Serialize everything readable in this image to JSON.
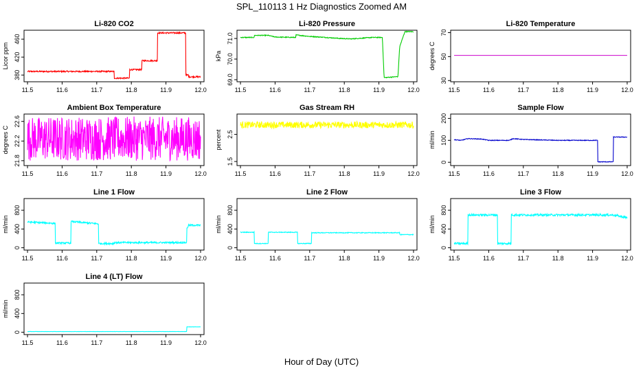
{
  "figure": {
    "title": "SPL_110113  1 Hz Diagnostics Zoomed AM",
    "xlabel": "Hour of Day (UTC)"
  },
  "chart_data": [
    {
      "type": "line",
      "title": "Li-820 CO2",
      "ylabel": "Licor ppm",
      "color": "#ff0000",
      "xlim": [
        11.49,
        12.01
      ],
      "ylim": [
        365,
        480
      ],
      "xticks": [
        "11.5",
        "11.6",
        "11.7",
        "11.8",
        "11.9",
        "12.0"
      ],
      "yticks": [
        380,
        420,
        460
      ],
      "series": [
        {
          "x": [
            11.5,
            11.75,
            11.75,
            11.795,
            11.795,
            11.83,
            11.83,
            11.875,
            11.875,
            11.957,
            11.957,
            11.965,
            11.965,
            12.0
          ],
          "y": [
            388,
            388,
            373,
            373,
            392,
            392,
            412,
            412,
            474,
            474,
            380,
            380,
            376,
            376
          ],
          "noise": 1.5
        }
      ]
    },
    {
      "type": "line",
      "title": "Li-820 Pressure",
      "ylabel": "kPa",
      "color": "#00cc00",
      "xlim": [
        11.49,
        12.01
      ],
      "ylim": [
        68.9,
        71.4
      ],
      "xticks": [
        "11.5",
        "11.6",
        "11.7",
        "11.8",
        "11.9",
        "12.0"
      ],
      "yticks": [
        "69.0",
        "70.0",
        "71.0"
      ],
      "series": [
        {
          "x": [
            11.5,
            11.54,
            11.54,
            11.58,
            11.6,
            11.66,
            11.66,
            11.7,
            11.73,
            11.79,
            11.82,
            11.88,
            11.91,
            11.915,
            11.915,
            11.955,
            11.96,
            11.975,
            12.0
          ],
          "y": [
            71.05,
            71.05,
            71.15,
            71.15,
            71.07,
            71.05,
            71.17,
            71.1,
            71.07,
            71.0,
            70.98,
            71.05,
            71.05,
            69.1,
            69.1,
            69.15,
            70.6,
            71.33,
            71.33
          ],
          "noise": 0.02
        }
      ]
    },
    {
      "type": "line",
      "title": "Li-820 Temperature",
      "ylabel": "degrees C",
      "color": "#cc00cc",
      "xlim": [
        11.49,
        12.01
      ],
      "ylim": [
        29,
        72
      ],
      "xticks": [
        "11.5",
        "11.6",
        "11.7",
        "11.8",
        "11.9",
        "12.0"
      ],
      "yticks": [
        30,
        50,
        70
      ],
      "series": [
        {
          "x": [
            11.5,
            12.0
          ],
          "y": [
            51,
            51
          ],
          "noise": 0
        }
      ]
    },
    {
      "type": "line",
      "title": "Ambient Box Temperature",
      "ylabel": "degrees C",
      "color": "#ff00ff",
      "xlim": [
        11.49,
        12.01
      ],
      "ylim": [
        21.7,
        22.75
      ],
      "xticks": [
        "11.5",
        "11.6",
        "11.7",
        "11.8",
        "11.9",
        "12.0"
      ],
      "yticks": [
        21.8,
        22.2,
        22.6
      ],
      "series": [
        {
          "x": [
            11.5,
            12.0
          ],
          "y": [
            22.25,
            22.25
          ],
          "noise": 0.45
        }
      ]
    },
    {
      "type": "line",
      "title": "Gas Stream RH",
      "ylabel": "percent",
      "color": "#ffff00",
      "xlim": [
        11.49,
        12.01
      ],
      "ylim": [
        1.35,
        3.25
      ],
      "xticks": [
        "11.5",
        "11.6",
        "11.7",
        "11.8",
        "11.9",
        "12.0"
      ],
      "yticks": [
        "1.5",
        "2.5"
      ],
      "series": [
        {
          "x": [
            11.5,
            12.0
          ],
          "y": [
            2.85,
            2.85
          ],
          "noise": 0.12
        }
      ]
    },
    {
      "type": "line",
      "title": "Sample Flow",
      "ylabel": "ml/min",
      "color": "#0000cc",
      "xlim": [
        11.49,
        12.01
      ],
      "ylim": [
        -15,
        220
      ],
      "xticks": [
        "11.5",
        "11.6",
        "11.7",
        "11.8",
        "11.9",
        "12.0"
      ],
      "yticks": [
        0,
        100,
        200
      ],
      "series": [
        {
          "x": [
            11.5,
            11.52,
            11.54,
            11.58,
            11.6,
            11.66,
            11.67,
            11.7,
            11.8,
            11.915,
            11.915,
            11.96,
            11.96,
            12.0
          ],
          "y": [
            103,
            100,
            108,
            106,
            100,
            100,
            108,
            104,
            100,
            100,
            2,
            2,
            115,
            115
          ],
          "noise": 1.5
        }
      ]
    },
    {
      "type": "line",
      "title": "Line 1 Flow",
      "ylabel": "ml/min",
      "color": "#00ffff",
      "xlim": [
        11.49,
        12.01
      ],
      "ylim": [
        -50,
        1050
      ],
      "xticks": [
        "11.5",
        "11.6",
        "11.7",
        "11.8",
        "11.9",
        "12.0"
      ],
      "yticks": [
        0,
        400,
        800
      ],
      "series": [
        {
          "x": [
            11.5,
            11.58,
            11.58,
            11.625,
            11.625,
            11.705,
            11.705,
            11.75,
            11.75,
            11.96,
            11.96,
            11.965,
            12.0
          ],
          "y": [
            550,
            520,
            100,
            100,
            560,
            510,
            90,
            90,
            110,
            110,
            400,
            480,
            480
          ],
          "noise": 18
        }
      ]
    },
    {
      "type": "line",
      "title": "Line 2 Flow",
      "ylabel": "ml/min",
      "color": "#00ffff",
      "xlim": [
        11.49,
        12.01
      ],
      "ylim": [
        -50,
        1050
      ],
      "xticks": [
        "11.5",
        "11.6",
        "11.7",
        "11.8",
        "11.9",
        "12.0"
      ],
      "yticks": [
        0,
        400,
        800
      ],
      "series": [
        {
          "x": [
            11.5,
            11.54,
            11.54,
            11.58,
            11.58,
            11.665,
            11.665,
            11.705,
            11.705,
            11.96,
            11.96,
            12.0
          ],
          "y": [
            330,
            330,
            90,
            90,
            330,
            330,
            90,
            90,
            320,
            320,
            280,
            280
          ],
          "noise": 8
        }
      ]
    },
    {
      "type": "line",
      "title": "Line 3 Flow",
      "ylabel": "ml/min",
      "color": "#00ffff",
      "xlim": [
        11.49,
        12.01
      ],
      "ylim": [
        -50,
        1050
      ],
      "xticks": [
        "11.5",
        "11.6",
        "11.7",
        "11.8",
        "11.9",
        "12.0"
      ],
      "yticks": [
        0,
        400,
        800
      ],
      "series": [
        {
          "x": [
            11.5,
            11.54,
            11.54,
            11.625,
            11.625,
            11.665,
            11.665,
            11.96,
            12.0
          ],
          "y": [
            90,
            90,
            700,
            700,
            90,
            90,
            700,
            700,
            640
          ],
          "noise": 22
        }
      ]
    },
    {
      "type": "line",
      "title": "Line 4 (LT) Flow",
      "ylabel": "ml/min",
      "color": "#00ffff",
      "xlim": [
        11.49,
        12.01
      ],
      "ylim": [
        -50,
        1050
      ],
      "xticks": [
        "11.5",
        "11.6",
        "11.7",
        "11.8",
        "11.9",
        "12.0"
      ],
      "yticks": [
        0,
        400,
        800
      ],
      "series": [
        {
          "x": [
            11.5,
            11.96,
            11.96,
            12.0
          ],
          "y": [
            15,
            15,
            115,
            115
          ],
          "noise": 2
        }
      ]
    }
  ]
}
